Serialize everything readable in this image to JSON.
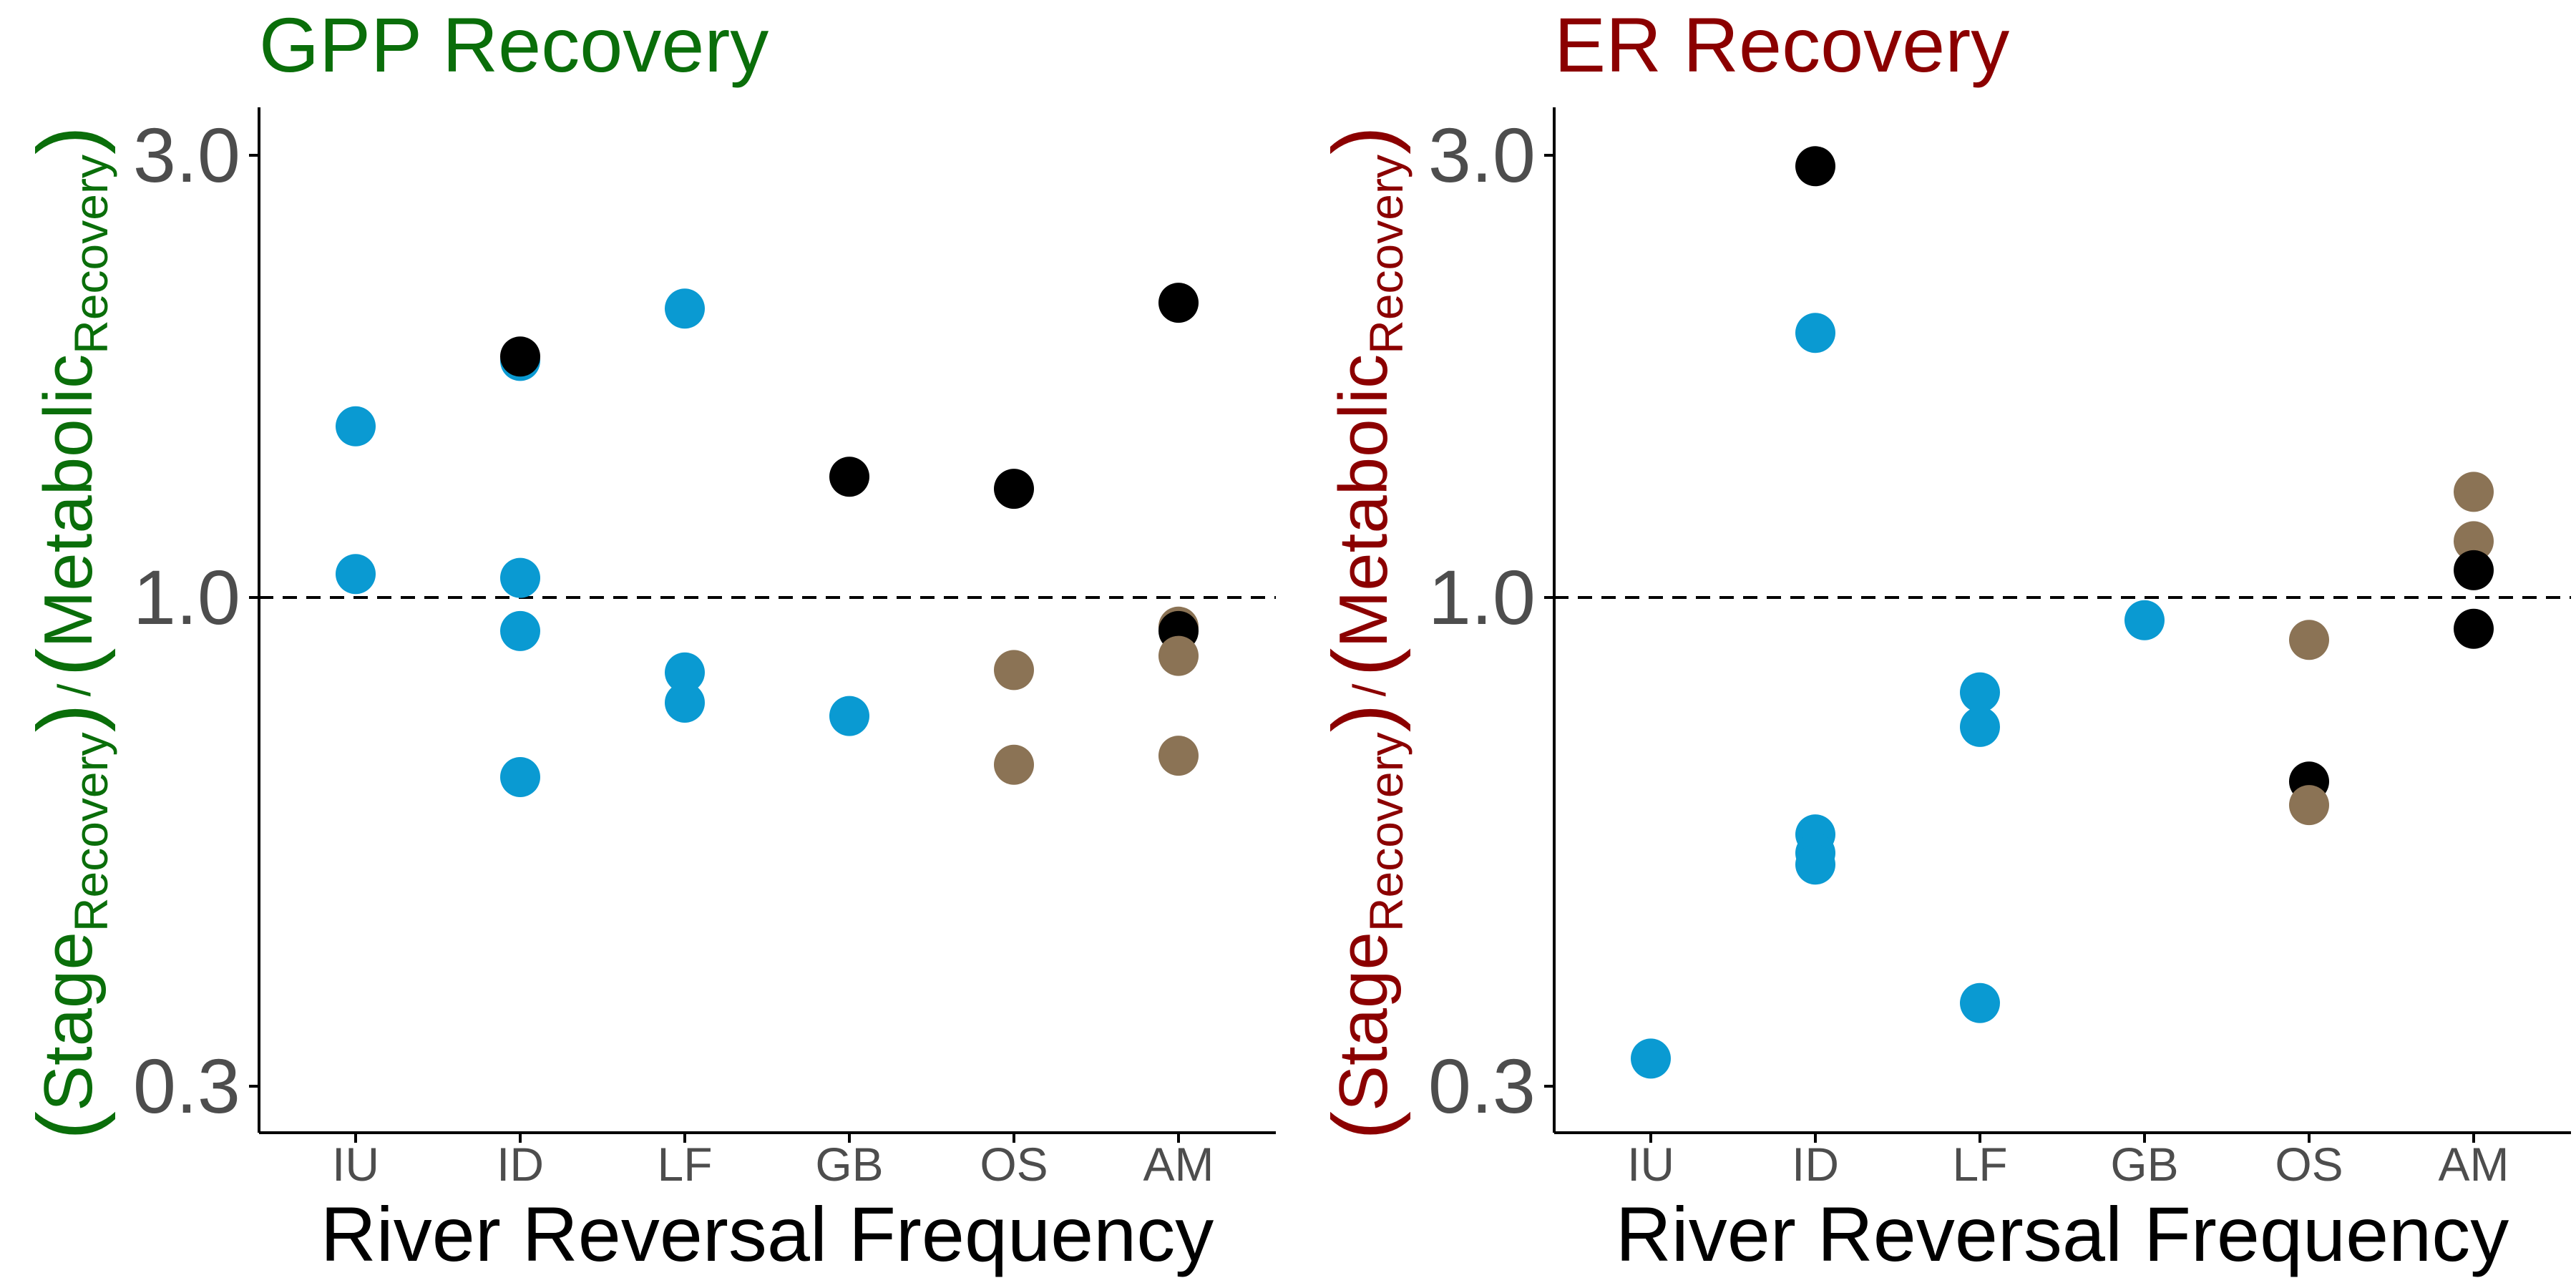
{
  "colors": {
    "gpp_title": "#0a6e0a",
    "er_title": "#8b0000",
    "blue": "#0a9ad2",
    "brown": "#8b7355",
    "black": "#000000",
    "tick_text": "#4d4d4d",
    "axis": "#000000"
  },
  "chart_data": [
    {
      "type": "scatter",
      "title": "GPP Recovery",
      "xlabel": "River Reversal Frequency",
      "ylabel_parts": {
        "a": "Stage",
        "a_sub": "Recovery",
        "b": "Metabolic",
        "b_sub": "Recovery"
      },
      "y_scale": "log",
      "yticks": [
        0.3,
        1.0,
        3.0
      ],
      "ytick_labels": [
        "0.3",
        "1.0",
        "3.0"
      ],
      "ylim": [
        0.25,
        3.25
      ],
      "reference_line": 1.0,
      "categories": [
        "IU",
        "ID",
        "LF",
        "GB",
        "OS",
        "AM"
      ],
      "points": [
        {
          "x": "IU",
          "y": 1.53,
          "color": "blue"
        },
        {
          "x": "IU",
          "y": 1.06,
          "color": "blue"
        },
        {
          "x": "ID",
          "y": 1.8,
          "color": "blue"
        },
        {
          "x": "ID",
          "y": 1.05,
          "color": "blue"
        },
        {
          "x": "ID",
          "y": 0.92,
          "color": "blue"
        },
        {
          "x": "ID",
          "y": 0.64,
          "color": "blue"
        },
        {
          "x": "ID",
          "y": 1.82,
          "color": "black"
        },
        {
          "x": "LF",
          "y": 2.05,
          "color": "blue"
        },
        {
          "x": "LF",
          "y": 0.83,
          "color": "blue"
        },
        {
          "x": "LF",
          "y": 0.77,
          "color": "blue"
        },
        {
          "x": "GB",
          "y": 0.745,
          "color": "blue"
        },
        {
          "x": "GB",
          "y": 1.35,
          "color": "black"
        },
        {
          "x": "OS",
          "y": 1.31,
          "color": "black"
        },
        {
          "x": "OS",
          "y": 0.835,
          "color": "brown"
        },
        {
          "x": "OS",
          "y": 0.66,
          "color": "brown"
        },
        {
          "x": "AM",
          "y": 2.08,
          "color": "black"
        },
        {
          "x": "AM",
          "y": 0.93,
          "color": "brown"
        },
        {
          "x": "AM",
          "y": 0.92,
          "color": "black"
        },
        {
          "x": "AM",
          "y": 0.865,
          "color": "brown"
        },
        {
          "x": "AM",
          "y": 0.675,
          "color": "brown"
        }
      ]
    },
    {
      "type": "scatter",
      "title": "ER Recovery",
      "xlabel": "River Reversal Frequency",
      "ylabel_parts": {
        "a": "Stage",
        "a_sub": "Recovery",
        "b": "Metabolic",
        "b_sub": "Recovery"
      },
      "y_scale": "log",
      "yticks": [
        0.3,
        1.0,
        3.0
      ],
      "ytick_labels": [
        "0.3",
        "1.0",
        "3.0"
      ],
      "ylim": [
        0.25,
        3.25
      ],
      "reference_line": 1.0,
      "categories": [
        "IU",
        "ID",
        "LF",
        "GB",
        "OS",
        "AM"
      ],
      "points": [
        {
          "x": "IU",
          "y": 0.318,
          "color": "blue"
        },
        {
          "x": "ID",
          "y": 2.92,
          "color": "black"
        },
        {
          "x": "ID",
          "y": 1.93,
          "color": "blue"
        },
        {
          "x": "ID",
          "y": 0.555,
          "color": "blue"
        },
        {
          "x": "ID",
          "y": 0.53,
          "color": "blue"
        },
        {
          "x": "ID",
          "y": 0.515,
          "color": "blue"
        },
        {
          "x": "LF",
          "y": 0.79,
          "color": "blue"
        },
        {
          "x": "LF",
          "y": 0.725,
          "color": "blue"
        },
        {
          "x": "LF",
          "y": 0.365,
          "color": "blue"
        },
        {
          "x": "GB",
          "y": 0.945,
          "color": "blue"
        },
        {
          "x": "OS",
          "y": 0.9,
          "color": "brown"
        },
        {
          "x": "OS",
          "y": 0.633,
          "color": "black"
        },
        {
          "x": "OS",
          "y": 0.597,
          "color": "brown"
        },
        {
          "x": "AM",
          "y": 1.3,
          "color": "brown"
        },
        {
          "x": "AM",
          "y": 1.15,
          "color": "brown"
        },
        {
          "x": "AM",
          "y": 1.07,
          "color": "black"
        },
        {
          "x": "AM",
          "y": 0.925,
          "color": "black"
        }
      ]
    }
  ]
}
